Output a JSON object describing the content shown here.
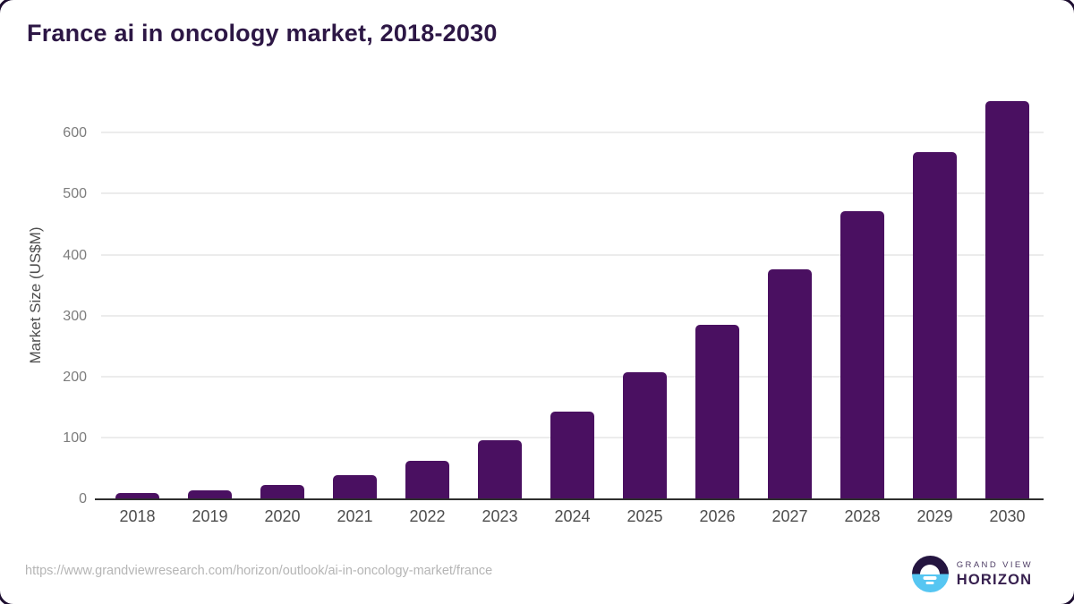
{
  "header": {
    "title": "France ai in oncology market, 2018-2030"
  },
  "chart_data": {
    "type": "bar",
    "title": "France ai in oncology market, 2018-2030",
    "categories": [
      "2018",
      "2019",
      "2020",
      "2021",
      "2022",
      "2023",
      "2024",
      "2025",
      "2026",
      "2027",
      "2028",
      "2029",
      "2030"
    ],
    "values": [
      10,
      14,
      23,
      39,
      63,
      97,
      144,
      208,
      286,
      377,
      473,
      570,
      653
    ],
    "xlabel": "",
    "ylabel": "Market Size (US$M)",
    "ylim": [
      0,
      665
    ],
    "yticks": [
      0,
      100,
      200,
      300,
      400,
      500,
      600
    ],
    "grid": true,
    "legend": "none",
    "bar_color": "#4A1061"
  },
  "footer": {
    "source_url": "https://www.grandviewresearch.com/horizon/outlook/ai-in-oncology-market/france",
    "logo": {
      "line1": "GRAND VIEW",
      "line2": "HORIZON"
    }
  },
  "colors": {
    "bar": "#4A1061",
    "title_text": "#2D1745",
    "gridline": "#ECECEC",
    "axis_line": "#2E2E2E",
    "y_tick_text": "#7C7C7C",
    "x_tick_text": "#4D4D4D",
    "url_text": "#B5B5B5",
    "logo_dark": "#241540",
    "logo_blue": "#56C6F2"
  }
}
